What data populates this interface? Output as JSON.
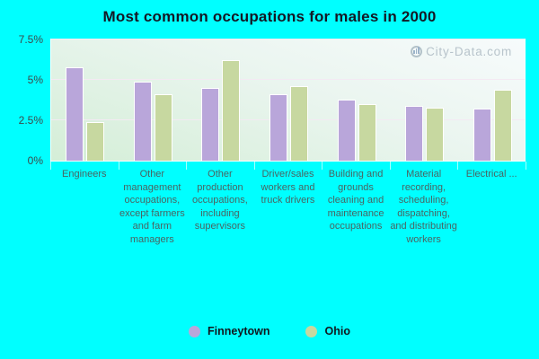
{
  "title": "Most common occupations for males in 2000",
  "watermark": "City-Data.com",
  "colors": {
    "background": "#00ffff",
    "finneytown": "#b9a6da",
    "ohio": "#c7d8a0"
  },
  "chart_data": {
    "type": "bar",
    "title": "Most common occupations for males in 2000",
    "categories": [
      "Engineers",
      "Other management occupations, except farmers and farm managers",
      "Other production occupations, including supervisors",
      "Driver/sales workers and truck drivers",
      "Building and grounds cleaning and maintenance occupations",
      "Material recording, scheduling, dispatching, and distributing workers",
      "Electrical ..."
    ],
    "series": [
      {
        "name": "Finneytown",
        "color": "#b9a6da",
        "values": [
          5.8,
          4.9,
          4.5,
          4.1,
          3.8,
          3.4,
          3.2
        ]
      },
      {
        "name": "Ohio",
        "color": "#c7d8a0",
        "values": [
          2.4,
          4.1,
          6.2,
          4.6,
          3.5,
          3.3,
          4.4
        ]
      }
    ],
    "unit": "%",
    "ylim": [
      0,
      7.5
    ],
    "y_ticks": [
      {
        "label": "0%",
        "value": 0
      },
      {
        "label": "2.5%",
        "value": 2.5
      },
      {
        "label": "5%",
        "value": 5
      },
      {
        "label": "7.5%",
        "value": 7.5
      }
    ],
    "grid": true,
    "legend_position": "bottom"
  },
  "legend": {
    "items": [
      {
        "label": "Finneytown",
        "color": "#b9a6da"
      },
      {
        "label": "Ohio",
        "color": "#c7d8a0"
      }
    ]
  }
}
